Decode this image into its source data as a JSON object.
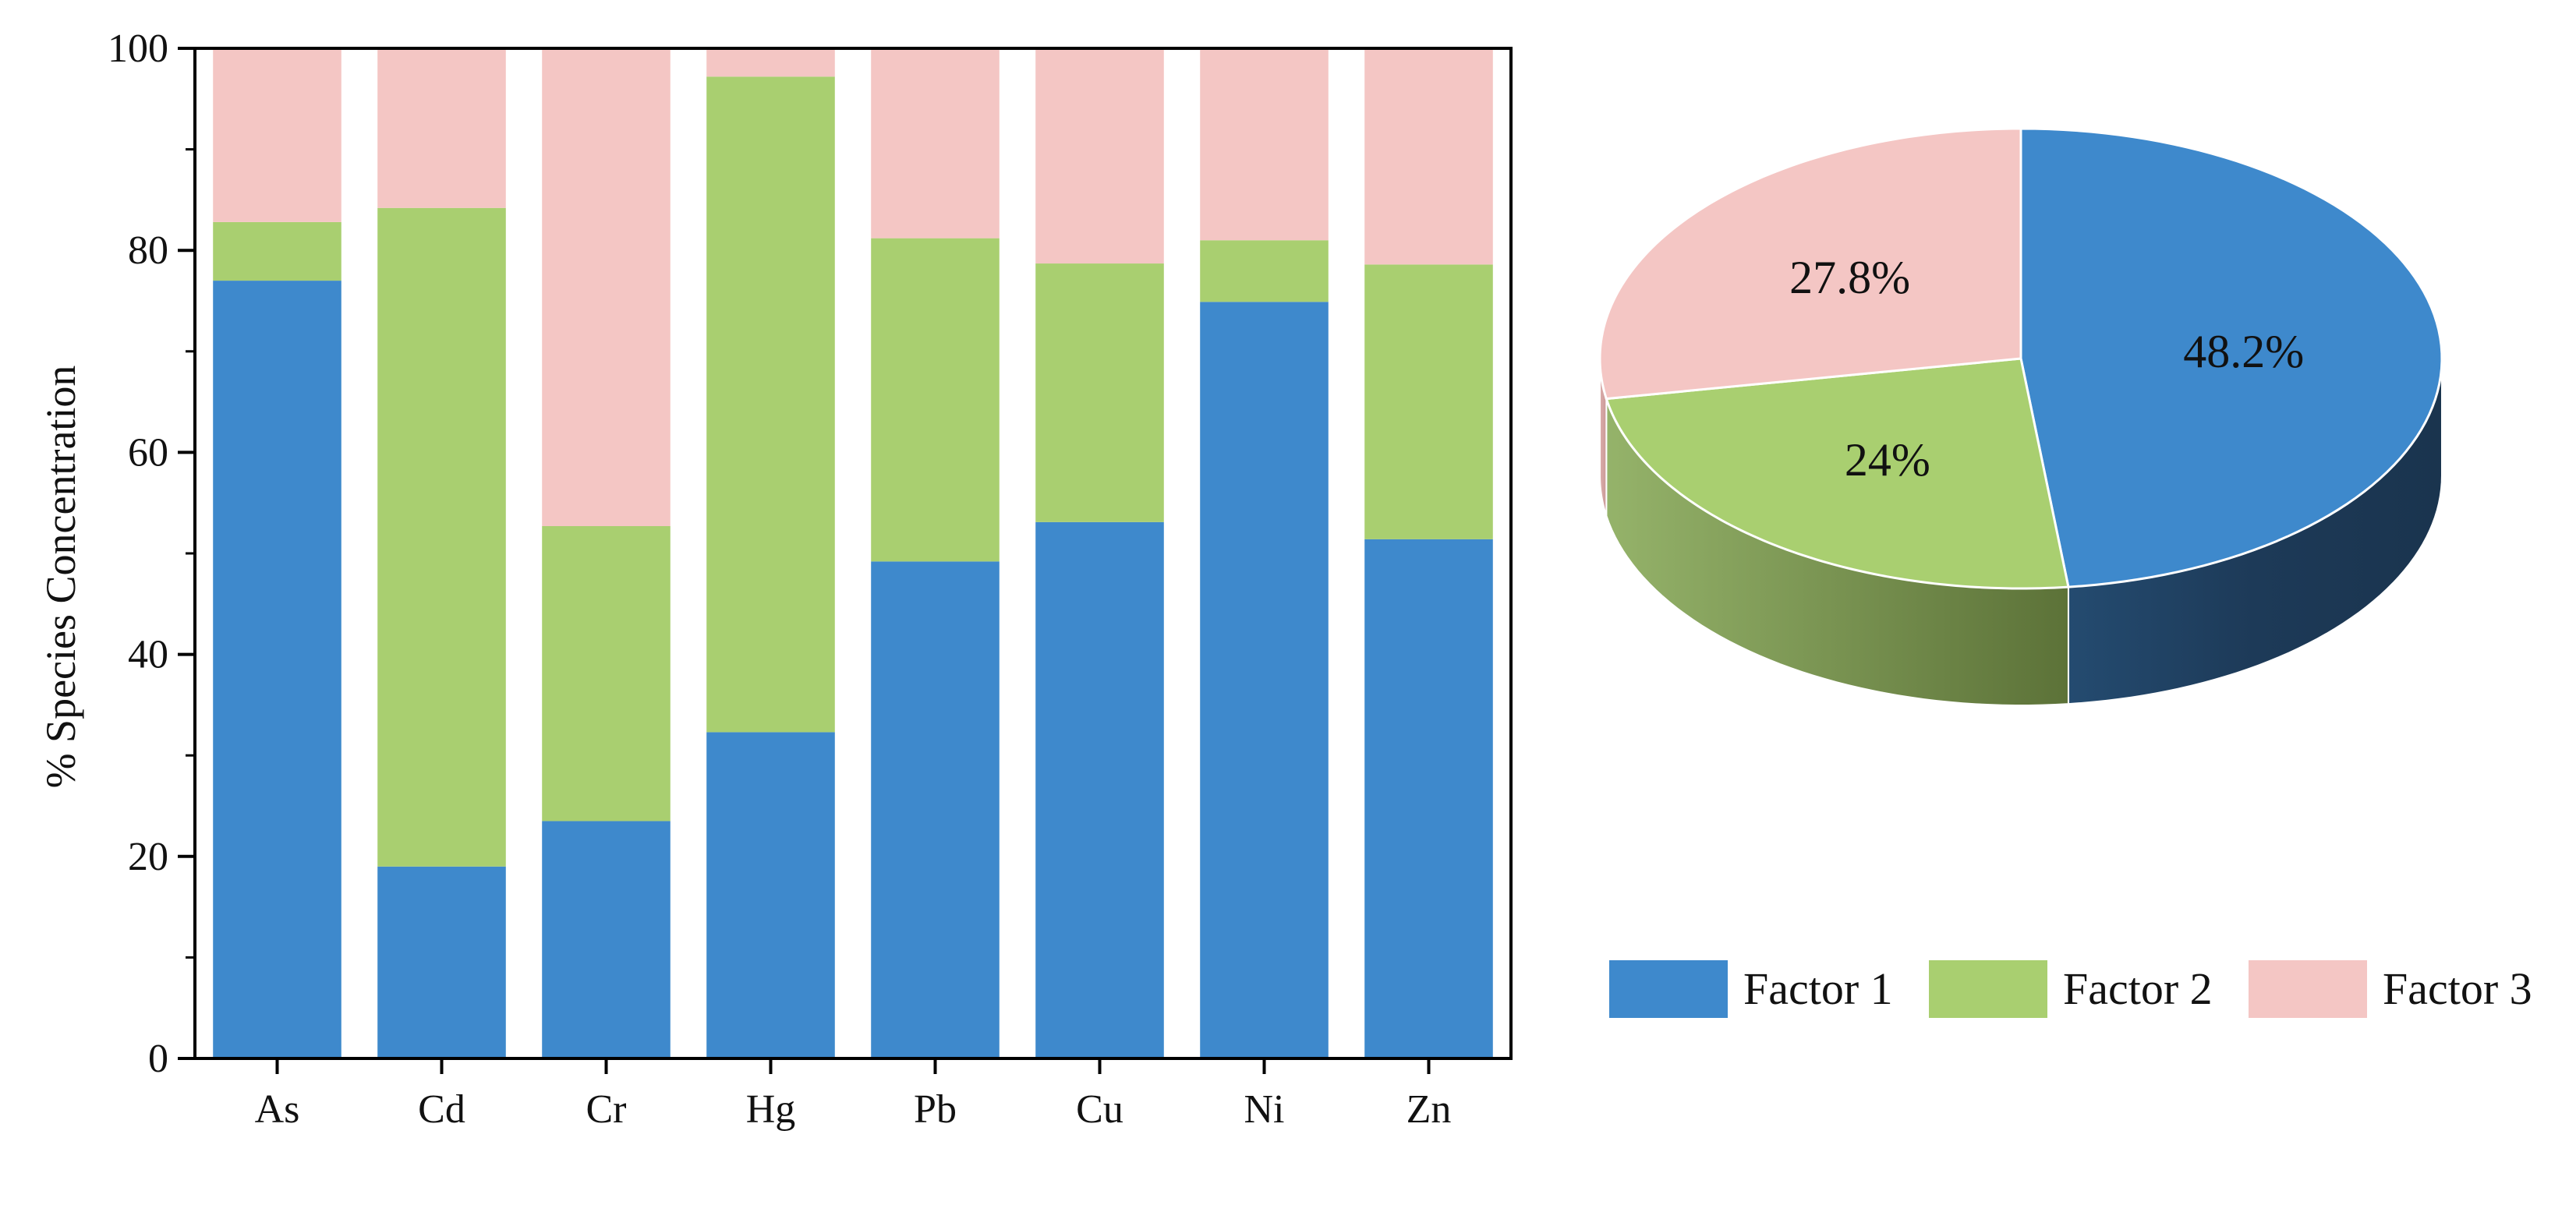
{
  "chart_data": [
    {
      "type": "bar",
      "stacked": true,
      "categories": [
        "As",
        "Cd",
        "Cr",
        "Hg",
        "Pb",
        "Cu",
        "Ni",
        "Zn"
      ],
      "series": [
        {
          "name": "Factor 1",
          "color": "#3e89cc",
          "values": [
            77.0,
            19.0,
            23.5,
            32.3,
            49.2,
            53.1,
            74.9,
            51.4
          ]
        },
        {
          "name": "Factor 2",
          "color": "#a9cf70",
          "values": [
            5.8,
            65.2,
            29.2,
            64.9,
            32.0,
            25.6,
            6.1,
            27.2
          ]
        },
        {
          "name": "Factor 3",
          "color": "#f4c6c4",
          "values": [
            17.2,
            15.8,
            47.3,
            2.8,
            18.8,
            21.3,
            19.0,
            21.4
          ]
        }
      ],
      "ylabel": "% Species Concentration",
      "ylim": [
        0,
        100
      ],
      "yticks": [
        "0",
        "20",
        "40",
        "60",
        "80",
        "100"
      ],
      "grid": false
    },
    {
      "type": "pie",
      "style": "3d",
      "slices": [
        {
          "name": "Factor 1",
          "value": 48.2,
          "label": "48.2%",
          "color": "#3e89cc",
          "side_color": "#1c3a57"
        },
        {
          "name": "Factor 2",
          "value": 24.0,
          "label": "24%",
          "color": "#a9cf70",
          "side_color": "#7e9d56"
        },
        {
          "name": "Factor 3",
          "value": 27.8,
          "label": "27.8%",
          "color": "#f4c6c4",
          "side_color": "#d9a8a6"
        }
      ]
    }
  ],
  "legend": {
    "placement": "bottom-right",
    "items": [
      {
        "label": "Factor 1",
        "color": "#3e89cc"
      },
      {
        "label": "Factor 2",
        "color": "#a9cf70"
      },
      {
        "label": "Factor 3",
        "color": "#f4c6c4"
      }
    ]
  }
}
